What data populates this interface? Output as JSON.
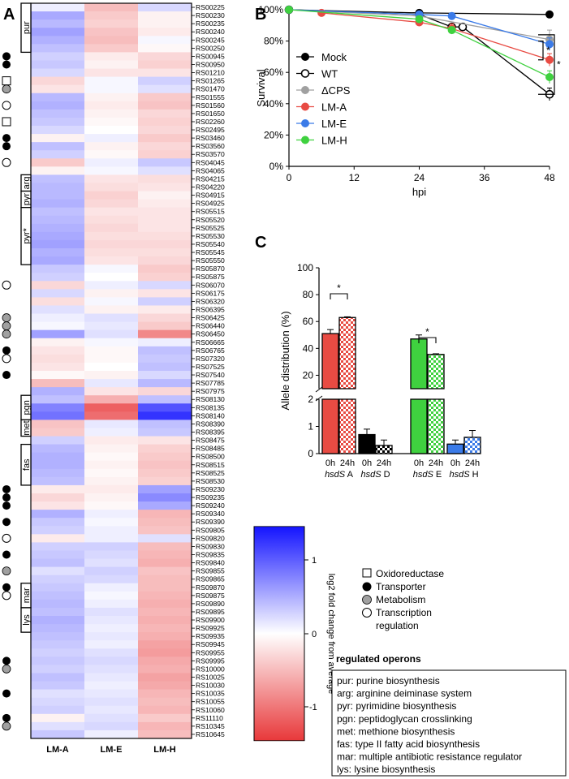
{
  "colors": {
    "heat_low": "#e8383a",
    "heat_mid": "#ffffff",
    "heat_high": "#1414ff",
    "mock": "#000000",
    "wt": "#000000",
    "dcps": "#a0a0a0",
    "lma": "#e84b43",
    "lme": "#3b7be8",
    "lmh": "#3fd13f"
  },
  "panel_labels": {
    "a": "A",
    "b": "B",
    "c": "C"
  },
  "heatmap": {
    "columns": [
      "LM-A",
      "LM-E",
      "LM-H"
    ],
    "rows": [
      {
        "gene": "RS00225",
        "v": [
          0.1,
          -0.5,
          0.25
        ],
        "m": ""
      },
      {
        "gene": "RS00230",
        "v": [
          0.55,
          -0.4,
          -0.1
        ],
        "m": ""
      },
      {
        "gene": "RS00235",
        "v": [
          0.45,
          -0.35,
          -0.1
        ],
        "m": ""
      },
      {
        "gene": "RS00240",
        "v": [
          0.6,
          -0.45,
          -0.15
        ],
        "m": ""
      },
      {
        "gene": "RS00245",
        "v": [
          0.5,
          -0.5,
          0.05
        ],
        "m": ""
      },
      {
        "gene": "RS00250",
        "v": [
          0.4,
          -0.4,
          -0.05
        ],
        "m": ""
      },
      {
        "gene": "RS00945",
        "v": [
          0.3,
          -0.15,
          -0.3
        ],
        "m": "transporter"
      },
      {
        "gene": "RS00950",
        "v": [
          0.35,
          -0.1,
          -0.35
        ],
        "m": "transporter"
      },
      {
        "gene": "RS01210",
        "v": [
          0.25,
          -0.2,
          -0.2
        ],
        "m": ""
      },
      {
        "gene": "RS01265",
        "v": [
          -0.3,
          0.05,
          0.3
        ],
        "m": "oxidoreductase"
      },
      {
        "gene": "RS01470",
        "v": [
          -0.2,
          0.05,
          0.2
        ],
        "m": "metabolism"
      },
      {
        "gene": "RS01555",
        "v": [
          0.45,
          -0.1,
          -0.4
        ],
        "m": ""
      },
      {
        "gene": "RS01560",
        "v": [
          0.5,
          -0.15,
          -0.45
        ],
        "m": "transcription"
      },
      {
        "gene": "RS01650",
        "v": [
          0.4,
          -0.1,
          -0.3
        ],
        "m": ""
      },
      {
        "gene": "RS02260",
        "v": [
          0.35,
          -0.05,
          -0.35
        ],
        "m": "oxidoreductase"
      },
      {
        "gene": "RS02495",
        "v": [
          0.25,
          0.0,
          -0.3
        ],
        "m": ""
      },
      {
        "gene": "RS03460",
        "v": [
          -0.1,
          0.1,
          -0.4
        ],
        "m": "transporter"
      },
      {
        "gene": "RS03560",
        "v": [
          0.4,
          -0.1,
          -0.3
        ],
        "m": "transporter"
      },
      {
        "gene": "RS03570",
        "v": [
          0.3,
          -0.05,
          -0.35
        ],
        "m": ""
      },
      {
        "gene": "RS04045",
        "v": [
          -0.4,
          0.1,
          0.35
        ],
        "m": "transcription"
      },
      {
        "gene": "RS04065",
        "v": [
          -0.1,
          0.05,
          0.2
        ],
        "m": ""
      },
      {
        "gene": "RS04215",
        "v": [
          0.4,
          -0.2,
          -0.25
        ],
        "m": ""
      },
      {
        "gene": "RS04220",
        "v": [
          0.45,
          -0.25,
          -0.2
        ],
        "m": ""
      },
      {
        "gene": "RS04915",
        "v": [
          0.45,
          -0.35,
          -0.1
        ],
        "m": ""
      },
      {
        "gene": "RS04925",
        "v": [
          0.5,
          -0.3,
          -0.15
        ],
        "m": ""
      },
      {
        "gene": "RS05515",
        "v": [
          0.4,
          -0.2,
          -0.2
        ],
        "m": ""
      },
      {
        "gene": "RS05520",
        "v": [
          0.45,
          -0.25,
          -0.2
        ],
        "m": ""
      },
      {
        "gene": "RS05525",
        "v": [
          0.5,
          -0.3,
          -0.2
        ],
        "m": ""
      },
      {
        "gene": "RS05530",
        "v": [
          0.55,
          -0.25,
          -0.25
        ],
        "m": ""
      },
      {
        "gene": "RS05540",
        "v": [
          0.6,
          -0.3,
          -0.3
        ],
        "m": ""
      },
      {
        "gene": "RS05545",
        "v": [
          0.5,
          -0.25,
          -0.25
        ],
        "m": ""
      },
      {
        "gene": "RS05550",
        "v": [
          0.55,
          -0.2,
          -0.3
        ],
        "m": ""
      },
      {
        "gene": "RS05870",
        "v": [
          0.35,
          0.05,
          -0.4
        ],
        "m": ""
      },
      {
        "gene": "RS05875",
        "v": [
          0.3,
          0.0,
          -0.35
        ],
        "m": ""
      },
      {
        "gene": "RS06070",
        "v": [
          -0.3,
          0.1,
          0.25
        ],
        "m": "transcription"
      },
      {
        "gene": "RS06175",
        "v": [
          0.25,
          -0.1,
          -0.2
        ],
        "m": ""
      },
      {
        "gene": "RS06320",
        "v": [
          -0.25,
          0.05,
          0.3
        ],
        "m": ""
      },
      {
        "gene": "RS06395",
        "v": [
          0.2,
          -0.1,
          -0.15
        ],
        "m": ""
      },
      {
        "gene": "RS06425",
        "v": [
          0.1,
          0.2,
          -0.3
        ],
        "m": "metabolism"
      },
      {
        "gene": "RS06440",
        "v": [
          0.05,
          0.15,
          -0.4
        ],
        "m": "metabolism"
      },
      {
        "gene": "RS06450",
        "v": [
          0.6,
          0.2,
          -0.9
        ],
        "m": "metabolism"
      },
      {
        "gene": "RS06665",
        "v": [
          -0.1,
          0.05,
          0.1
        ],
        "m": ""
      },
      {
        "gene": "RS06765",
        "v": [
          -0.2,
          -0.05,
          0.4
        ],
        "m": "transporter"
      },
      {
        "gene": "RS07320",
        "v": [
          -0.25,
          -0.05,
          0.35
        ],
        "m": "transcription"
      },
      {
        "gene": "RS07525",
        "v": [
          -0.2,
          0.0,
          0.4
        ],
        "m": ""
      },
      {
        "gene": "RS07540",
        "v": [
          -0.05,
          -0.1,
          0.25
        ],
        "m": "transporter"
      },
      {
        "gene": "RS07785",
        "v": [
          -0.5,
          0.15,
          0.45
        ],
        "m": ""
      },
      {
        "gene": "RS07975",
        "v": [
          0.5,
          -0.2,
          -0.3
        ],
        "m": ""
      },
      {
        "gene": "RS08130",
        "v": [
          0.4,
          -0.6,
          0.4
        ],
        "m": ""
      },
      {
        "gene": "RS08135",
        "v": [
          0.8,
          -1.2,
          1.1
        ],
        "m": ""
      },
      {
        "gene": "RS08140",
        "v": [
          0.9,
          -1.1,
          1.3
        ],
        "m": ""
      },
      {
        "gene": "RS08390",
        "v": [
          -0.45,
          0.15,
          0.4
        ],
        "m": ""
      },
      {
        "gene": "RS08395",
        "v": [
          -0.4,
          0.1,
          0.35
        ],
        "m": ""
      },
      {
        "gene": "RS08475",
        "v": [
          0.3,
          -0.15,
          -0.2
        ],
        "m": ""
      },
      {
        "gene": "RS08485",
        "v": [
          0.45,
          -0.1,
          -0.35
        ],
        "m": ""
      },
      {
        "gene": "RS08500",
        "v": [
          0.5,
          -0.05,
          -0.4
        ],
        "m": ""
      },
      {
        "gene": "RS08515",
        "v": [
          0.5,
          -0.1,
          -0.45
        ],
        "m": ""
      },
      {
        "gene": "RS08525",
        "v": [
          0.45,
          -0.05,
          -0.4
        ],
        "m": ""
      },
      {
        "gene": "RS08530",
        "v": [
          0.4,
          -0.1,
          -0.35
        ],
        "m": ""
      },
      {
        "gene": "RS09230",
        "v": [
          -0.15,
          -0.15,
          0.6
        ],
        "m": "transporter"
      },
      {
        "gene": "RS09235",
        "v": [
          -0.3,
          -0.1,
          0.75
        ],
        "m": "transporter"
      },
      {
        "gene": "RS09240",
        "v": [
          -0.2,
          -0.05,
          0.55
        ],
        "m": "transporter"
      },
      {
        "gene": "RS09340",
        "v": [
          0.5,
          0.1,
          -0.55
        ],
        "m": ""
      },
      {
        "gene": "RS09390",
        "v": [
          0.35,
          0.05,
          -0.5
        ],
        "m": "transporter"
      },
      {
        "gene": "RS09805",
        "v": [
          0.3,
          0.1,
          -0.45
        ],
        "m": ""
      },
      {
        "gene": "RS09820",
        "v": [
          -0.15,
          0.1,
          0.2
        ],
        "m": "transcription"
      },
      {
        "gene": "RS09830",
        "v": [
          0.3,
          0.3,
          -0.5
        ],
        "m": ""
      },
      {
        "gene": "RS09835",
        "v": [
          0.35,
          0.25,
          -0.55
        ],
        "m": "transporter"
      },
      {
        "gene": "RS09840",
        "v": [
          0.4,
          0.2,
          -0.6
        ],
        "m": ""
      },
      {
        "gene": "RS09855",
        "v": [
          0.2,
          0.3,
          -0.45
        ],
        "m": "metabolism"
      },
      {
        "gene": "RS09865",
        "v": [
          0.3,
          0.25,
          -0.5
        ],
        "m": ""
      },
      {
        "gene": "RS09870",
        "v": [
          0.35,
          0.1,
          -0.5
        ],
        "m": "transporter"
      },
      {
        "gene": "RS09875",
        "v": [
          0.4,
          0.05,
          -0.55
        ],
        "m": "transcription"
      },
      {
        "gene": "RS09890",
        "v": [
          0.45,
          0.1,
          -0.6
        ],
        "m": ""
      },
      {
        "gene": "RS09895",
        "v": [
          0.4,
          0.2,
          -0.55
        ],
        "m": ""
      },
      {
        "gene": "RS09900",
        "v": [
          0.5,
          0.15,
          -0.6
        ],
        "m": ""
      },
      {
        "gene": "RS09925",
        "v": [
          0.45,
          0.1,
          -0.55
        ],
        "m": ""
      },
      {
        "gene": "RS09935",
        "v": [
          0.4,
          0.15,
          -0.6
        ],
        "m": ""
      },
      {
        "gene": "RS09945",
        "v": [
          0.35,
          0.1,
          -0.7
        ],
        "m": ""
      },
      {
        "gene": "RS09955",
        "v": [
          0.3,
          0.2,
          -0.75
        ],
        "m": ""
      },
      {
        "gene": "RS09995",
        "v": [
          0.35,
          0.25,
          -0.65
        ],
        "m": "transporter"
      },
      {
        "gene": "RS10000",
        "v": [
          0.3,
          0.2,
          -0.6
        ],
        "m": "metabolism"
      },
      {
        "gene": "RS10025",
        "v": [
          0.4,
          0.15,
          -0.7
        ],
        "m": ""
      },
      {
        "gene": "RS10030",
        "v": [
          0.35,
          0.1,
          -0.65
        ],
        "m": ""
      },
      {
        "gene": "RS10035",
        "v": [
          0.2,
          0.15,
          -0.55
        ],
        "m": "transporter"
      },
      {
        "gene": "RS10055",
        "v": [
          0.25,
          0.2,
          -0.5
        ],
        "m": ""
      },
      {
        "gene": "RS10060",
        "v": [
          0.3,
          0.15,
          -0.55
        ],
        "m": ""
      },
      {
        "gene": "RS11110",
        "v": [
          -0.1,
          0.2,
          -0.4
        ],
        "m": "transporter"
      },
      {
        "gene": "RS10345",
        "v": [
          0.2,
          0.25,
          -0.55
        ],
        "m": "metabolism"
      },
      {
        "gene": "RS10645",
        "v": [
          0.35,
          0.1,
          -0.5
        ],
        "m": ""
      }
    ],
    "operons": [
      {
        "label": "pur",
        "start": 0,
        "end": 5
      },
      {
        "label": "arg",
        "start": 21,
        "end": 22
      },
      {
        "label": "pyr",
        "start": 23,
        "end": 24
      },
      {
        "label": "pyr*",
        "start": 25,
        "end": 31
      },
      {
        "label": "pgn",
        "start": 48,
        "end": 50
      },
      {
        "label": "met",
        "start": 51,
        "end": 52
      },
      {
        "label": "fas",
        "start": 54,
        "end": 58
      },
      {
        "label": "mar",
        "start": 71,
        "end": 73
      },
      {
        "label": "lys",
        "start": 74,
        "end": 76
      }
    ]
  },
  "colorbar": {
    "ticks": [
      "1",
      "0",
      "-1"
    ],
    "label": "log2 fold change from average",
    "range": [
      -1.5,
      1.5
    ]
  },
  "legend": {
    "oxidoreductase": "Oxidoreductase",
    "transporter": "Transporter",
    "metabolism": "Metabolism",
    "transcription_1": "Transcription",
    "transcription_2": "regulation"
  },
  "operon_box": {
    "title": "regulated operons",
    "lines": [
      "pur: purine biosynthesis",
      "arg: arginine deiminase system",
      "pyr: pyrimidine biosynthesis",
      "pgn: peptidoglycan crosslinking",
      "met: methione biosynthesis",
      "fas: type II fatty acid biosynthesis",
      "mar: multiple antibiotic resistance regulator",
      "lys: lysine biosynthesis"
    ]
  },
  "chart_data": [
    {
      "type": "heatmap",
      "columns": [
        "LM-A",
        "LM-E",
        "LM-H"
      ],
      "value_range": [
        -1.5,
        1.5
      ],
      "colorbar_label": "log2 fold change from average"
    },
    {
      "type": "line",
      "xlabel": "hpi",
      "ylabel": "Survival",
      "xlim": [
        0,
        48
      ],
      "ylim": [
        0,
        100
      ],
      "xticks": [
        "0",
        "12",
        "24",
        "36",
        "48"
      ],
      "yticks": [
        "0%",
        "20%",
        "40%",
        "60%",
        "80%",
        "100%"
      ],
      "legend_placement": "left",
      "significance": [
        "*",
        "*"
      ],
      "series": [
        {
          "name": "Mock",
          "x": [
            0,
            24,
            48
          ],
          "y": [
            100,
            98,
            97
          ],
          "err": [
            0,
            1,
            1
          ]
        },
        {
          "name": "WT",
          "x": [
            0,
            24,
            30,
            32,
            48
          ],
          "y": [
            100,
            97,
            89,
            89,
            46
          ],
          "err": [
            0,
            1,
            2,
            2,
            4
          ]
        },
        {
          "name": "ΔCPS",
          "x": [
            0,
            24,
            48
          ],
          "y": [
            100,
            96,
            81
          ],
          "err": [
            0,
            1,
            6
          ]
        },
        {
          "name": "LM-A",
          "x": [
            6,
            24,
            30,
            48
          ],
          "y": [
            98,
            92,
            88,
            68
          ],
          "err": [
            0,
            2,
            3,
            4
          ]
        },
        {
          "name": "LM-E",
          "x": [
            0,
            24,
            30,
            48
          ],
          "y": [
            100,
            97,
            96,
            78
          ],
          "err": [
            0,
            1,
            1,
            4
          ]
        },
        {
          "name": "LM-H",
          "x": [
            0,
            24,
            30,
            48
          ],
          "y": [
            100,
            94,
            87,
            57
          ],
          "err": [
            0,
            2,
            2,
            4
          ]
        }
      ]
    },
    {
      "type": "bar",
      "ylabel": "Allele distribution (%)",
      "upper_yticks": [
        "20",
        "40",
        "60",
        "80",
        "100"
      ],
      "lower_yticks": [
        "0",
        "1",
        "2"
      ],
      "axis_break": [
        2,
        10
      ],
      "time_labels": [
        "0h",
        "24h"
      ],
      "significance": [
        "*",
        "*"
      ],
      "groups": [
        {
          "italic": "hsdS",
          "name": "A",
          "color_key": "lma",
          "values": [
            51,
            63
          ],
          "err": [
            3,
            0.5
          ]
        },
        {
          "italic": "hsdS",
          "name": "D",
          "color_key": "wt",
          "values": [
            0.7,
            0.3
          ],
          "err": [
            0.2,
            0.2
          ]
        },
        {
          "italic": "hsdS",
          "name": "E",
          "color_key": "lmh",
          "values": [
            47,
            35.5
          ],
          "err": [
            3,
            0.5
          ]
        },
        {
          "italic": "hsdS",
          "name": "H",
          "color_key": "lme",
          "values": [
            0.35,
            0.6
          ],
          "err": [
            0.15,
            0.25
          ]
        }
      ]
    }
  ]
}
